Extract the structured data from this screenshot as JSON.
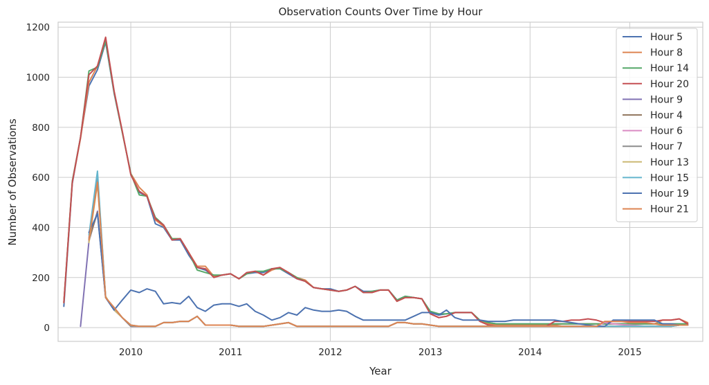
{
  "chart_data": {
    "type": "line",
    "title": "Observation Counts Over Time by Hour",
    "xlabel": "Year",
    "ylabel": "Number of Observations",
    "xlim": [
      "2009-04-10",
      "2015-09-25"
    ],
    "ylim": [
      -55,
      1220
    ],
    "x_ticks": [
      "2010",
      "2011",
      "2012",
      "2013",
      "2014",
      "2015"
    ],
    "y_ticks": [
      0,
      200,
      400,
      600,
      800,
      1000,
      1200
    ],
    "grid": true,
    "legend_position": "top-right",
    "x": [
      "2009-05",
      "2009-06",
      "2009-07",
      "2009-08",
      "2009-09",
      "2009-10",
      "2009-11",
      "2009-12",
      "2010-01",
      "2010-02",
      "2010-03",
      "2010-04",
      "2010-05",
      "2010-06",
      "2010-07",
      "2010-08",
      "2010-09",
      "2010-10",
      "2010-11",
      "2010-12",
      "2011-01",
      "2011-02",
      "2011-03",
      "2011-04",
      "2011-05",
      "2011-06",
      "2011-07",
      "2011-08",
      "2011-09",
      "2011-10",
      "2011-11",
      "2011-12",
      "2012-01",
      "2012-02",
      "2012-03",
      "2012-04",
      "2012-05",
      "2012-06",
      "2012-07",
      "2012-08",
      "2012-09",
      "2012-10",
      "2012-11",
      "2012-12",
      "2013-01",
      "2013-02",
      "2013-03",
      "2013-04",
      "2013-05",
      "2013-06",
      "2013-07",
      "2013-08",
      "2013-09",
      "2013-10",
      "2013-11",
      "2013-12",
      "2014-01",
      "2014-02",
      "2014-03",
      "2014-04",
      "2014-05",
      "2014-06",
      "2014-07",
      "2014-08",
      "2014-09",
      "2014-10",
      "2014-11",
      "2014-12",
      "2015-01",
      "2015-02",
      "2015-03",
      "2015-04",
      "2015-05",
      "2015-06",
      "2015-07",
      "2015-08"
    ],
    "series": [
      {
        "name": "Hour 5",
        "color": "#4c72b0",
        "values": [
          85,
          575,
          760,
          965,
          1030,
          1140,
          935,
          780,
          615,
          540,
          525,
          415,
          400,
          350,
          350,
          290,
          240,
          230,
          205,
          210,
          215,
          195,
          215,
          220,
          220,
          235,
          235,
          215,
          195,
          185,
          160,
          155,
          155,
          145,
          150,
          165,
          145,
          145,
          150,
          150,
          110,
          125,
          120,
          115,
          60,
          50,
          55,
          60,
          60,
          60,
          30,
          20,
          15,
          15,
          15,
          15,
          15,
          15,
          15,
          15,
          15,
          15,
          15,
          15,
          15,
          15,
          15,
          15,
          15,
          15,
          15,
          15,
          15,
          15,
          15,
          15
        ]
      },
      {
        "name": "Hour 8",
        "color": "#dd8452",
        "values": [
          100,
          580,
          755,
          980,
          1045,
          1150,
          940,
          780,
          615,
          560,
          530,
          430,
          405,
          355,
          355,
          300,
          245,
          245,
          205,
          210,
          215,
          195,
          215,
          225,
          210,
          230,
          240,
          220,
          200,
          190,
          160,
          155,
          150,
          145,
          150,
          165,
          140,
          140,
          150,
          150,
          105,
          120,
          120,
          115,
          55,
          40,
          45,
          60,
          60,
          60,
          30,
          15,
          10,
          10,
          10,
          10,
          10,
          10,
          10,
          10,
          15,
          15,
          15,
          15,
          15,
          15,
          15,
          15,
          15,
          15,
          15,
          15,
          30,
          30,
          35,
          20
        ]
      },
      {
        "name": "Hour 14",
        "color": "#55a868",
        "values": [
          100,
          585,
          760,
          1025,
          1040,
          1145,
          940,
          780,
          615,
          530,
          525,
          440,
          410,
          355,
          355,
          300,
          230,
          220,
          210,
          210,
          215,
          195,
          215,
          225,
          225,
          235,
          235,
          220,
          200,
          185,
          160,
          155,
          150,
          145,
          150,
          165,
          140,
          145,
          150,
          150,
          110,
          125,
          120,
          115,
          65,
          55,
          55,
          60,
          60,
          60,
          30,
          20,
          15,
          15,
          15,
          15,
          15,
          15,
          15,
          15,
          15,
          15,
          15,
          15,
          15,
          15,
          15,
          15,
          15,
          15,
          15,
          15,
          15,
          15,
          15,
          15
        ]
      },
      {
        "name": "Hour 20",
        "color": "#c44e52",
        "values": [
          100,
          580,
          760,
          1010,
          1045,
          1160,
          945,
          785,
          610,
          545,
          525,
          435,
          410,
          350,
          355,
          300,
          240,
          235,
          200,
          210,
          215,
          195,
          220,
          225,
          210,
          235,
          240,
          220,
          195,
          185,
          160,
          155,
          150,
          145,
          150,
          165,
          140,
          140,
          150,
          150,
          105,
          120,
          120,
          115,
          55,
          40,
          45,
          60,
          60,
          60,
          25,
          10,
          5,
          5,
          5,
          5,
          5,
          5,
          5,
          25,
          25,
          30,
          30,
          35,
          30,
          20,
          25,
          25,
          25,
          25,
          25,
          25,
          30,
          30,
          35,
          15
        ]
      },
      {
        "name": "Hour 9",
        "color": "#8172b3",
        "values": [
          null,
          null,
          5,
          345,
          465,
          120,
          70,
          40,
          5,
          5,
          5,
          5,
          20,
          20,
          25,
          25,
          45,
          10,
          10,
          10,
          10,
          5,
          5,
          5,
          5,
          10,
          15,
          20,
          5,
          5,
          5,
          5,
          5,
          5,
          5,
          5,
          5,
          5,
          5,
          5,
          20,
          20,
          15,
          15,
          10,
          5,
          5,
          5,
          5,
          5,
          5,
          5,
          5,
          5,
          5,
          5,
          5,
          5,
          5,
          5,
          5,
          5,
          5,
          5,
          5,
          5,
          5,
          5,
          5,
          5,
          5,
          5,
          5,
          5,
          10,
          10
        ]
      },
      {
        "name": "Hour 4",
        "color": "#937860",
        "values": [
          null,
          null,
          null,
          350,
          460,
          120,
          75,
          40,
          5,
          5,
          5,
          5,
          20,
          20,
          25,
          25,
          45,
          10,
          10,
          10,
          10,
          5,
          5,
          5,
          5,
          10,
          15,
          20,
          5,
          5,
          5,
          5,
          5,
          5,
          5,
          5,
          5,
          5,
          5,
          5,
          20,
          20,
          15,
          15,
          10,
          5,
          5,
          5,
          5,
          5,
          5,
          5,
          5,
          5,
          5,
          5,
          5,
          5,
          5,
          5,
          5,
          5,
          5,
          5,
          5,
          5,
          5,
          5,
          5,
          5,
          5,
          5,
          5,
          5,
          10,
          10
        ]
      },
      {
        "name": "Hour 6",
        "color": "#da8bc3",
        "values": [
          null,
          null,
          null,
          360,
          600,
          120,
          75,
          40,
          5,
          5,
          5,
          5,
          20,
          20,
          25,
          25,
          45,
          10,
          10,
          10,
          10,
          5,
          5,
          5,
          5,
          10,
          15,
          20,
          5,
          5,
          5,
          5,
          5,
          5,
          5,
          5,
          5,
          5,
          5,
          5,
          20,
          20,
          15,
          15,
          10,
          5,
          5,
          5,
          5,
          5,
          5,
          5,
          5,
          5,
          5,
          5,
          5,
          5,
          5,
          5,
          5,
          5,
          5,
          5,
          5,
          20,
          15,
          12,
          10,
          8,
          5,
          5,
          5,
          5,
          10,
          10
        ]
      },
      {
        "name": "Hour 7",
        "color": "#8c8c8c",
        "values": [
          null,
          null,
          null,
          355,
          610,
          120,
          75,
          40,
          5,
          5,
          5,
          5,
          20,
          20,
          25,
          25,
          45,
          10,
          10,
          10,
          10,
          5,
          5,
          5,
          5,
          10,
          15,
          20,
          5,
          5,
          5,
          5,
          5,
          5,
          5,
          5,
          5,
          5,
          5,
          5,
          20,
          20,
          15,
          15,
          10,
          5,
          5,
          5,
          5,
          5,
          5,
          5,
          5,
          5,
          5,
          5,
          5,
          5,
          5,
          5,
          5,
          5,
          5,
          5,
          5,
          5,
          5,
          5,
          5,
          5,
          5,
          5,
          5,
          5,
          10,
          10
        ]
      },
      {
        "name": "Hour 13",
        "color": "#ccb974",
        "values": [
          null,
          null,
          null,
          340,
          575,
          125,
          70,
          40,
          10,
          5,
          5,
          5,
          20,
          20,
          25,
          25,
          45,
          10,
          10,
          10,
          10,
          5,
          5,
          5,
          5,
          10,
          15,
          20,
          5,
          5,
          5,
          5,
          5,
          5,
          5,
          5,
          5,
          5,
          5,
          5,
          20,
          20,
          15,
          15,
          10,
          5,
          5,
          5,
          5,
          5,
          5,
          5,
          5,
          5,
          5,
          5,
          5,
          5,
          5,
          5,
          5,
          5,
          5,
          5,
          5,
          5,
          5,
          5,
          5,
          5,
          5,
          5,
          5,
          5,
          10,
          10
        ]
      },
      {
        "name": "Hour 15",
        "color": "#64b5cd",
        "values": [
          null,
          null,
          null,
          370,
          625,
          120,
          80,
          40,
          10,
          5,
          5,
          5,
          20,
          20,
          25,
          25,
          45,
          10,
          10,
          10,
          10,
          5,
          5,
          5,
          5,
          10,
          15,
          20,
          5,
          5,
          5,
          5,
          5,
          5,
          5,
          5,
          5,
          5,
          5,
          5,
          20,
          20,
          15,
          15,
          10,
          5,
          5,
          5,
          5,
          5,
          5,
          5,
          5,
          5,
          5,
          5,
          5,
          5,
          5,
          5,
          5,
          5,
          5,
          5,
          5,
          5,
          5,
          5,
          5,
          5,
          5,
          5,
          5,
          5,
          10,
          10
        ]
      },
      {
        "name": "Hour 19",
        "color": "#4c72b0",
        "values": [
          null,
          null,
          null,
          380,
          455,
          120,
          70,
          110,
          150,
          140,
          155,
          145,
          95,
          100,
          95,
          125,
          80,
          65,
          90,
          95,
          95,
          85,
          95,
          65,
          50,
          30,
          40,
          60,
          50,
          80,
          70,
          65,
          65,
          70,
          65,
          45,
          30,
          30,
          30,
          30,
          30,
          30,
          45,
          60,
          60,
          50,
          70,
          40,
          30,
          30,
          30,
          25,
          25,
          25,
          30,
          30,
          30,
          30,
          30,
          30,
          25,
          20,
          15,
          10,
          5,
          5,
          30,
          30,
          30,
          30,
          30,
          30,
          15,
          15,
          10,
          10
        ]
      },
      {
        "name": "Hour 21",
        "color": "#dd8452",
        "values": [
          null,
          null,
          null,
          350,
          580,
          120,
          80,
          40,
          10,
          5,
          5,
          5,
          20,
          20,
          25,
          25,
          45,
          10,
          10,
          10,
          10,
          5,
          5,
          5,
          5,
          10,
          15,
          20,
          5,
          5,
          5,
          5,
          5,
          5,
          5,
          5,
          5,
          5,
          5,
          5,
          20,
          20,
          15,
          15,
          10,
          5,
          5,
          5,
          5,
          5,
          5,
          5,
          5,
          5,
          5,
          5,
          5,
          5,
          5,
          5,
          5,
          5,
          5,
          5,
          5,
          25,
          25,
          25,
          20,
          20,
          20,
          15,
          10,
          10,
          10,
          10
        ]
      }
    ]
  }
}
